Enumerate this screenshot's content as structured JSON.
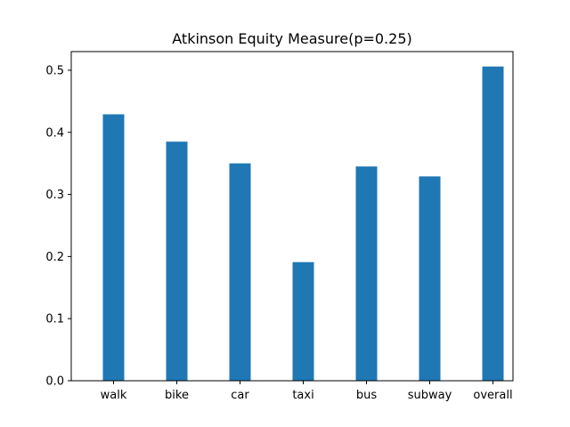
{
  "chart_data": {
    "type": "bar",
    "title": "Atkinson Equity Measure(p=0.25)",
    "xlabel": "",
    "ylabel": "",
    "categories": [
      "walk",
      "bike",
      "car",
      "taxi",
      "bus",
      "subway",
      "overall"
    ],
    "values": [
      0.429,
      0.385,
      0.35,
      0.191,
      0.345,
      0.329,
      0.506
    ],
    "ylim": [
      0,
      0.53
    ],
    "yticks": [
      "0.0",
      "0.1",
      "0.2",
      "0.3",
      "0.4",
      "0.5"
    ],
    "bar_color": "#1f77b4",
    "grid": false,
    "legend": "none"
  }
}
